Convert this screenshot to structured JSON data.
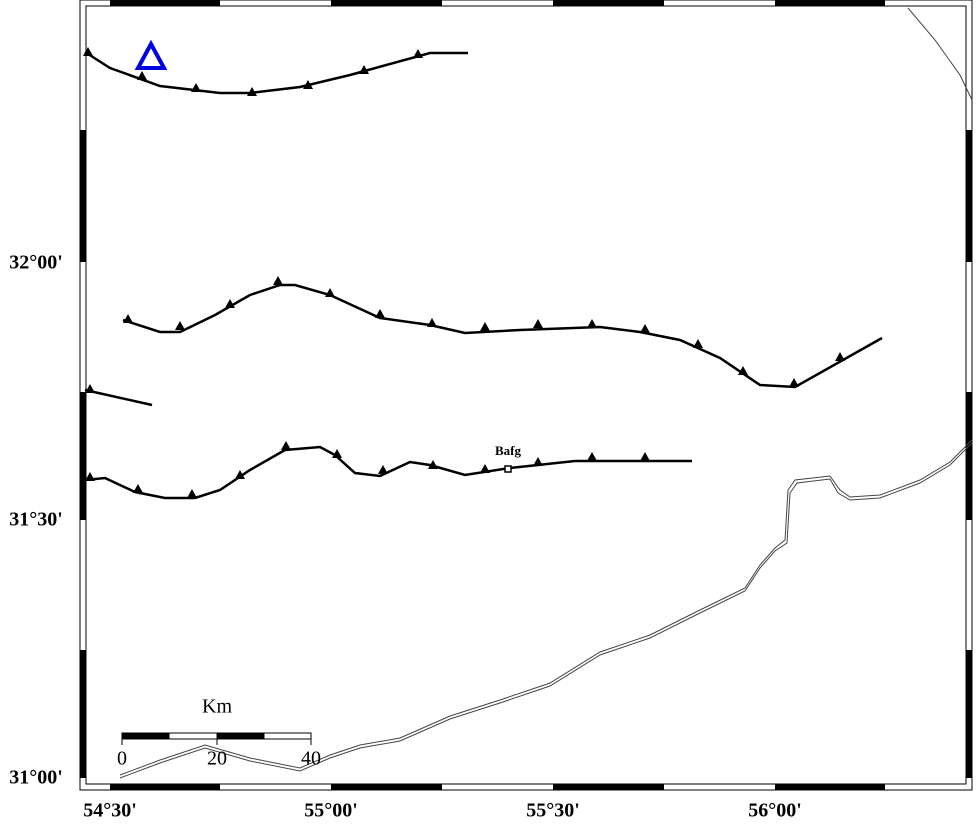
{
  "map": {
    "x_labels": [
      "54°30'",
      "55°00'",
      "55°30'",
      "56°00'"
    ],
    "y_labels": [
      "32°00'",
      "31°30'",
      "31°00'"
    ],
    "city": "Bafg",
    "scale": {
      "title": "Km",
      "labels": [
        "0",
        "20",
        "40"
      ]
    }
  }
}
